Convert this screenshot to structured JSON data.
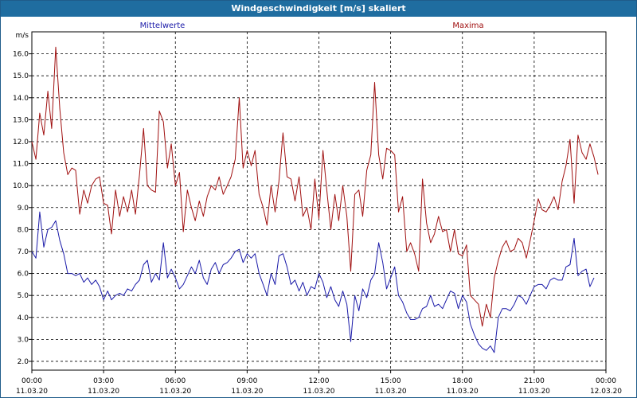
{
  "window": {
    "title": "Windgeschwindigkeit [m/s] skaliert"
  },
  "colors": {
    "mean": "#1a1aa8",
    "max": "#a01010",
    "titlebar": "#1f6da0",
    "grid": "#000000"
  },
  "chart_data": {
    "type": "line",
    "title": "Windgeschwindigkeit [m/s] skaliert",
    "ylabel": "m/s",
    "xlabel": "",
    "ylim": [
      1.6,
      17.0
    ],
    "yticks": [
      "2.0",
      "3.0",
      "4.0",
      "5.0",
      "6.0",
      "7.0",
      "8.0",
      "9.0",
      "10.0",
      "11.0",
      "12.0",
      "13.0",
      "14.0",
      "15.0",
      "16.0"
    ],
    "xlim": [
      0,
      24
    ],
    "xticks": [
      {
        "time": "00:00",
        "date": "11.03.20"
      },
      {
        "time": "03:00",
        "date": "11.03.20"
      },
      {
        "time": "06:00",
        "date": "11.03.20"
      },
      {
        "time": "09:00",
        "date": "11.03.20"
      },
      {
        "time": "12:00",
        "date": "11.03.20"
      },
      {
        "time": "15:00",
        "date": "11.03.20"
      },
      {
        "time": "18:00",
        "date": "11.03.20"
      },
      {
        "time": "21:00",
        "date": "11.03.20"
      },
      {
        "time": "00:00",
        "date": "12.03.20"
      }
    ],
    "grid": true,
    "legend": "top",
    "series": [
      {
        "name": "Mittelwerte",
        "color": "#1a1aa8",
        "points": [
          [
            0.0,
            7.0
          ],
          [
            0.17,
            6.7
          ],
          [
            0.33,
            8.8
          ],
          [
            0.5,
            7.2
          ],
          [
            0.67,
            8.0
          ],
          [
            0.83,
            8.1
          ],
          [
            1.0,
            8.4
          ],
          [
            1.17,
            7.5
          ],
          [
            1.33,
            6.9
          ],
          [
            1.5,
            6.0
          ],
          [
            1.67,
            6.0
          ],
          [
            1.83,
            5.9
          ],
          [
            2.0,
            6.0
          ],
          [
            2.17,
            5.6
          ],
          [
            2.33,
            5.8
          ],
          [
            2.5,
            5.5
          ],
          [
            2.67,
            5.7
          ],
          [
            2.83,
            5.4
          ],
          [
            3.0,
            4.8
          ],
          [
            3.17,
            5.2
          ],
          [
            3.33,
            4.8
          ],
          [
            3.5,
            5.0
          ],
          [
            3.67,
            5.1
          ],
          [
            3.83,
            5.0
          ],
          [
            4.0,
            5.3
          ],
          [
            4.17,
            5.2
          ],
          [
            4.33,
            5.5
          ],
          [
            4.5,
            5.7
          ],
          [
            4.67,
            6.4
          ],
          [
            4.83,
            6.6
          ],
          [
            5.0,
            5.6
          ],
          [
            5.17,
            6.0
          ],
          [
            5.33,
            5.7
          ],
          [
            5.5,
            7.4
          ],
          [
            5.67,
            5.8
          ],
          [
            5.83,
            6.2
          ],
          [
            6.0,
            5.8
          ],
          [
            6.17,
            5.3
          ],
          [
            6.33,
            5.5
          ],
          [
            6.5,
            5.9
          ],
          [
            6.67,
            6.3
          ],
          [
            6.83,
            6.0
          ],
          [
            7.0,
            6.6
          ],
          [
            7.17,
            5.8
          ],
          [
            7.33,
            5.5
          ],
          [
            7.5,
            6.2
          ],
          [
            7.67,
            6.5
          ],
          [
            7.83,
            6.0
          ],
          [
            8.0,
            6.4
          ],
          [
            8.17,
            6.5
          ],
          [
            8.33,
            6.7
          ],
          [
            8.5,
            7.0
          ],
          [
            8.67,
            7.1
          ],
          [
            8.83,
            6.5
          ],
          [
            9.0,
            6.9
          ],
          [
            9.17,
            6.7
          ],
          [
            9.33,
            6.9
          ],
          [
            9.5,
            6.0
          ],
          [
            9.67,
            5.5
          ],
          [
            9.83,
            5.0
          ],
          [
            10.0,
            6.0
          ],
          [
            10.17,
            5.5
          ],
          [
            10.33,
            6.8
          ],
          [
            10.5,
            6.9
          ],
          [
            10.67,
            6.3
          ],
          [
            10.83,
            5.5
          ],
          [
            11.0,
            5.7
          ],
          [
            11.17,
            5.2
          ],
          [
            11.33,
            5.6
          ],
          [
            11.5,
            5.0
          ],
          [
            11.67,
            5.4
          ],
          [
            11.83,
            5.3
          ],
          [
            12.0,
            6.0
          ],
          [
            12.17,
            5.6
          ],
          [
            12.33,
            4.9
          ],
          [
            12.5,
            5.4
          ],
          [
            12.67,
            4.8
          ],
          [
            12.83,
            4.5
          ],
          [
            13.0,
            5.2
          ],
          [
            13.17,
            4.6
          ],
          [
            13.33,
            2.9
          ],
          [
            13.5,
            5.0
          ],
          [
            13.67,
            4.3
          ],
          [
            13.83,
            5.3
          ],
          [
            14.0,
            4.9
          ],
          [
            14.17,
            5.7
          ],
          [
            14.33,
            6.0
          ],
          [
            14.5,
            7.4
          ],
          [
            14.67,
            6.5
          ],
          [
            14.83,
            5.3
          ],
          [
            15.0,
            5.8
          ],
          [
            15.17,
            6.3
          ],
          [
            15.33,
            5.0
          ],
          [
            15.5,
            4.7
          ],
          [
            15.67,
            4.2
          ],
          [
            15.83,
            3.9
          ],
          [
            16.0,
            3.9
          ],
          [
            16.17,
            4.0
          ],
          [
            16.33,
            4.4
          ],
          [
            16.5,
            4.5
          ],
          [
            16.67,
            5.0
          ],
          [
            16.83,
            4.5
          ],
          [
            17.0,
            4.6
          ],
          [
            17.17,
            4.4
          ],
          [
            17.33,
            4.8
          ],
          [
            17.5,
            5.2
          ],
          [
            17.67,
            5.1
          ],
          [
            17.83,
            4.4
          ],
          [
            18.0,
            5.0
          ],
          [
            18.17,
            4.7
          ],
          [
            18.33,
            3.7
          ],
          [
            18.5,
            3.2
          ],
          [
            18.67,
            2.8
          ],
          [
            18.83,
            2.6
          ],
          [
            19.0,
            2.5
          ],
          [
            19.17,
            2.7
          ],
          [
            19.33,
            2.4
          ],
          [
            19.5,
            4.0
          ],
          [
            19.67,
            4.4
          ],
          [
            19.83,
            4.4
          ],
          [
            20.0,
            4.3
          ],
          [
            20.17,
            4.6
          ],
          [
            20.33,
            5.0
          ],
          [
            20.5,
            4.9
          ],
          [
            20.67,
            4.6
          ],
          [
            20.83,
            5.0
          ],
          [
            21.0,
            5.4
          ],
          [
            21.17,
            5.5
          ],
          [
            21.33,
            5.5
          ],
          [
            21.5,
            5.3
          ],
          [
            21.67,
            5.7
          ],
          [
            21.83,
            5.8
          ],
          [
            22.0,
            5.7
          ],
          [
            22.17,
            5.7
          ],
          [
            22.33,
            6.3
          ],
          [
            22.5,
            6.4
          ],
          [
            22.67,
            7.6
          ],
          [
            22.83,
            5.9
          ],
          [
            23.0,
            6.1
          ],
          [
            23.17,
            6.2
          ],
          [
            23.33,
            5.4
          ],
          [
            23.5,
            5.8
          ]
        ]
      },
      {
        "name": "Maxima",
        "color": "#a01010",
        "points": [
          [
            0.0,
            12.0
          ],
          [
            0.17,
            11.2
          ],
          [
            0.33,
            13.3
          ],
          [
            0.5,
            12.3
          ],
          [
            0.67,
            14.3
          ],
          [
            0.83,
            12.6
          ],
          [
            1.0,
            16.3
          ],
          [
            1.17,
            13.5
          ],
          [
            1.33,
            11.5
          ],
          [
            1.5,
            10.5
          ],
          [
            1.67,
            10.8
          ],
          [
            1.83,
            10.7
          ],
          [
            2.0,
            8.7
          ],
          [
            2.17,
            9.8
          ],
          [
            2.33,
            9.2
          ],
          [
            2.5,
            10.0
          ],
          [
            2.67,
            10.3
          ],
          [
            2.83,
            10.4
          ],
          [
            3.0,
            9.2
          ],
          [
            3.17,
            9.1
          ],
          [
            3.33,
            7.8
          ],
          [
            3.5,
            9.8
          ],
          [
            3.67,
            8.6
          ],
          [
            3.83,
            9.5
          ],
          [
            4.0,
            8.8
          ],
          [
            4.17,
            9.8
          ],
          [
            4.33,
            8.7
          ],
          [
            4.5,
            10.5
          ],
          [
            4.67,
            12.6
          ],
          [
            4.83,
            10.0
          ],
          [
            5.0,
            9.8
          ],
          [
            5.17,
            9.7
          ],
          [
            5.33,
            13.4
          ],
          [
            5.5,
            12.9
          ],
          [
            5.67,
            10.8
          ],
          [
            5.83,
            11.9
          ],
          [
            6.0,
            10.0
          ],
          [
            6.17,
            10.6
          ],
          [
            6.33,
            7.9
          ],
          [
            6.5,
            9.8
          ],
          [
            6.67,
            9.0
          ],
          [
            6.83,
            8.4
          ],
          [
            7.0,
            9.3
          ],
          [
            7.17,
            8.6
          ],
          [
            7.33,
            9.5
          ],
          [
            7.5,
            10.0
          ],
          [
            7.67,
            9.8
          ],
          [
            7.83,
            10.4
          ],
          [
            8.0,
            9.6
          ],
          [
            8.17,
            10.0
          ],
          [
            8.33,
            10.4
          ],
          [
            8.5,
            11.2
          ],
          [
            8.67,
            14.0
          ],
          [
            8.83,
            10.8
          ],
          [
            9.0,
            11.6
          ],
          [
            9.17,
            10.9
          ],
          [
            9.33,
            11.6
          ],
          [
            9.5,
            9.6
          ],
          [
            9.67,
            9.0
          ],
          [
            9.83,
            8.2
          ],
          [
            10.0,
            10.0
          ],
          [
            10.17,
            8.8
          ],
          [
            10.33,
            10.2
          ],
          [
            10.5,
            12.4
          ],
          [
            10.67,
            10.4
          ],
          [
            10.83,
            10.3
          ],
          [
            11.0,
            9.3
          ],
          [
            11.17,
            10.4
          ],
          [
            11.33,
            8.6
          ],
          [
            11.5,
            9.0
          ],
          [
            11.67,
            8.0
          ],
          [
            11.83,
            10.3
          ],
          [
            12.0,
            8.5
          ],
          [
            12.17,
            11.6
          ],
          [
            12.33,
            9.8
          ],
          [
            12.5,
            8.0
          ],
          [
            12.67,
            9.6
          ],
          [
            12.83,
            8.4
          ],
          [
            13.0,
            10.0
          ],
          [
            13.17,
            8.6
          ],
          [
            13.33,
            6.1
          ],
          [
            13.5,
            9.6
          ],
          [
            13.67,
            9.8
          ],
          [
            13.83,
            8.6
          ],
          [
            14.0,
            10.7
          ],
          [
            14.17,
            11.4
          ],
          [
            14.33,
            14.7
          ],
          [
            14.5,
            11.4
          ],
          [
            14.67,
            10.3
          ],
          [
            14.83,
            11.7
          ],
          [
            15.0,
            11.6
          ],
          [
            15.17,
            11.4
          ],
          [
            15.33,
            8.8
          ],
          [
            15.5,
            9.5
          ],
          [
            15.67,
            7.0
          ],
          [
            15.83,
            7.4
          ],
          [
            16.0,
            6.9
          ],
          [
            16.17,
            6.1
          ],
          [
            16.33,
            10.3
          ],
          [
            16.5,
            8.3
          ],
          [
            16.67,
            7.4
          ],
          [
            16.83,
            7.8
          ],
          [
            17.0,
            8.6
          ],
          [
            17.17,
            7.9
          ],
          [
            17.33,
            8.0
          ],
          [
            17.5,
            7.0
          ],
          [
            17.67,
            8.0
          ],
          [
            17.83,
            6.9
          ],
          [
            18.0,
            6.8
          ],
          [
            18.17,
            7.3
          ],
          [
            18.33,
            5.0
          ],
          [
            18.5,
            4.8
          ],
          [
            18.67,
            4.6
          ],
          [
            18.83,
            3.6
          ],
          [
            19.0,
            4.6
          ],
          [
            19.17,
            4.0
          ],
          [
            19.33,
            5.8
          ],
          [
            19.5,
            6.6
          ],
          [
            19.67,
            7.2
          ],
          [
            19.83,
            7.5
          ],
          [
            20.0,
            7.0
          ],
          [
            20.17,
            7.1
          ],
          [
            20.33,
            7.6
          ],
          [
            20.5,
            7.4
          ],
          [
            20.67,
            6.7
          ],
          [
            20.83,
            7.5
          ],
          [
            21.0,
            8.4
          ],
          [
            21.17,
            9.4
          ],
          [
            21.33,
            8.9
          ],
          [
            21.5,
            8.8
          ],
          [
            21.67,
            9.1
          ],
          [
            21.83,
            9.5
          ],
          [
            22.0,
            8.9
          ],
          [
            22.17,
            10.2
          ],
          [
            22.33,
            10.9
          ],
          [
            22.5,
            12.1
          ],
          [
            22.67,
            9.2
          ],
          [
            22.83,
            12.3
          ],
          [
            23.0,
            11.5
          ],
          [
            23.17,
            11.2
          ],
          [
            23.33,
            11.9
          ],
          [
            23.5,
            11.3
          ],
          [
            23.67,
            10.5
          ]
        ]
      }
    ]
  }
}
